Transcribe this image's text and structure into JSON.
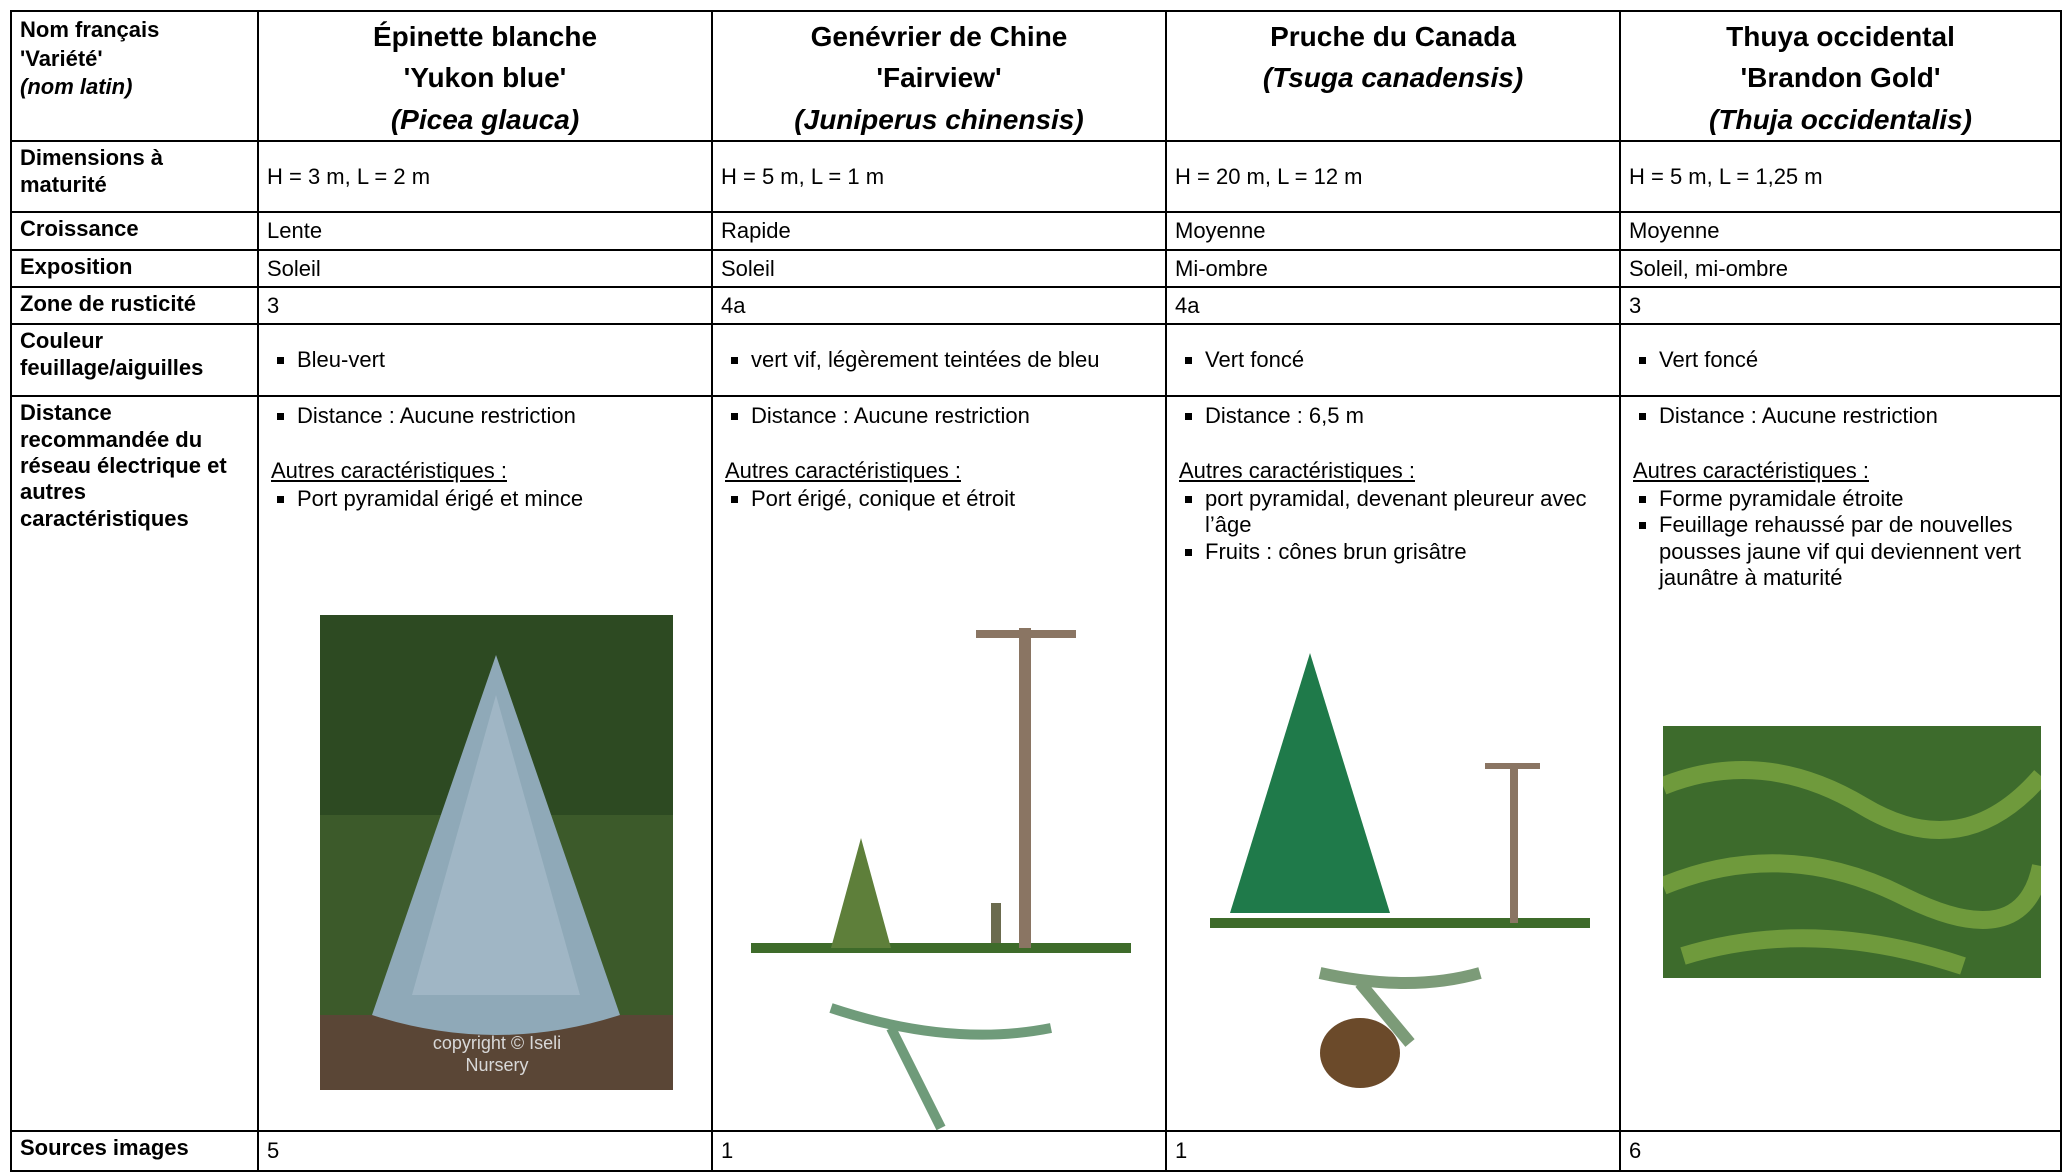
{
  "table": {
    "header": [
      {
        "lines": [
          "Nom français",
          "'Variété'",
          "(nom latin)"
        ]
      },
      {
        "name": "Épinette blanche",
        "variety": "'Yukon blue'",
        "latin": "(Picea glauca)"
      },
      {
        "name": "Genévrier de Chine",
        "variety": "'Fairview'",
        "latin": "(Juniperus chinensis)"
      },
      {
        "name": "Pruche du Canada",
        "latin": "(Tsuga canadensis)"
      },
      {
        "name": "Thuya occidental",
        "variety": "'Brandon Gold'",
        "latin": "(Thuja occidentalis)"
      }
    ],
    "rows": [
      {
        "label": "Dimensions à maturité",
        "cells": [
          "H = 3 m, L = 2 m",
          "H = 5 m, L = 1 m",
          "H = 20 m, L = 12 m",
          "H = 5 m, L = 1,25 m"
        ]
      },
      {
        "label": "Croissance",
        "cells": [
          "Lente",
          "Rapide",
          "Moyenne",
          "Moyenne"
        ]
      },
      {
        "label": "Exposition",
        "cells": [
          "Soleil",
          "Soleil",
          "Mi-ombre",
          "Soleil, mi-ombre"
        ]
      },
      {
        "label": "Zone de rusticité",
        "cells": [
          "3",
          "4a",
          "4a",
          "3"
        ]
      },
      {
        "label": "Couleur feuillage/aiguilles",
        "bullets": [
          [
            "Bleu-vert"
          ],
          [
            "vert vif, légèrement teintées de bleu"
          ],
          [
            "Vert foncé"
          ],
          [
            "Vert foncé"
          ]
        ]
      },
      {
        "label": "Distance recommandée du réseau électrique et autres caractéristiques",
        "details": [
          {
            "distance": "Distance : Aucune restriction",
            "other_title": "Autres caractéristiques :",
            "other": [
              "Port pyramidal érigé et mince"
            ],
            "image_caption": "copyright © Iseli Nursery"
          },
          {
            "distance": "Distance : Aucune restriction",
            "other_title": "Autres caractéristiques :",
            "other": [
              "Port érigé, conique et étroit"
            ]
          },
          {
            "distance": "Distance : 6,5 m",
            "other_title": "Autres caractéristiques :",
            "other": [
              "port pyramidal, devenant pleureur avec l’âge",
              "Fruits : cônes brun grisâtre"
            ]
          },
          {
            "distance": "Distance : Aucune restriction",
            "other_title": "Autres caractéristiques :",
            "other": [
              "Forme pyramidale étroite",
              "Feuillage rehaussé par de nouvelles pousses jaune vif qui deviennent vert jaunâtre à maturité"
            ]
          }
        ]
      },
      {
        "label": "Sources images",
        "cells": [
          "5",
          "1",
          "1",
          "6"
        ]
      }
    ]
  }
}
